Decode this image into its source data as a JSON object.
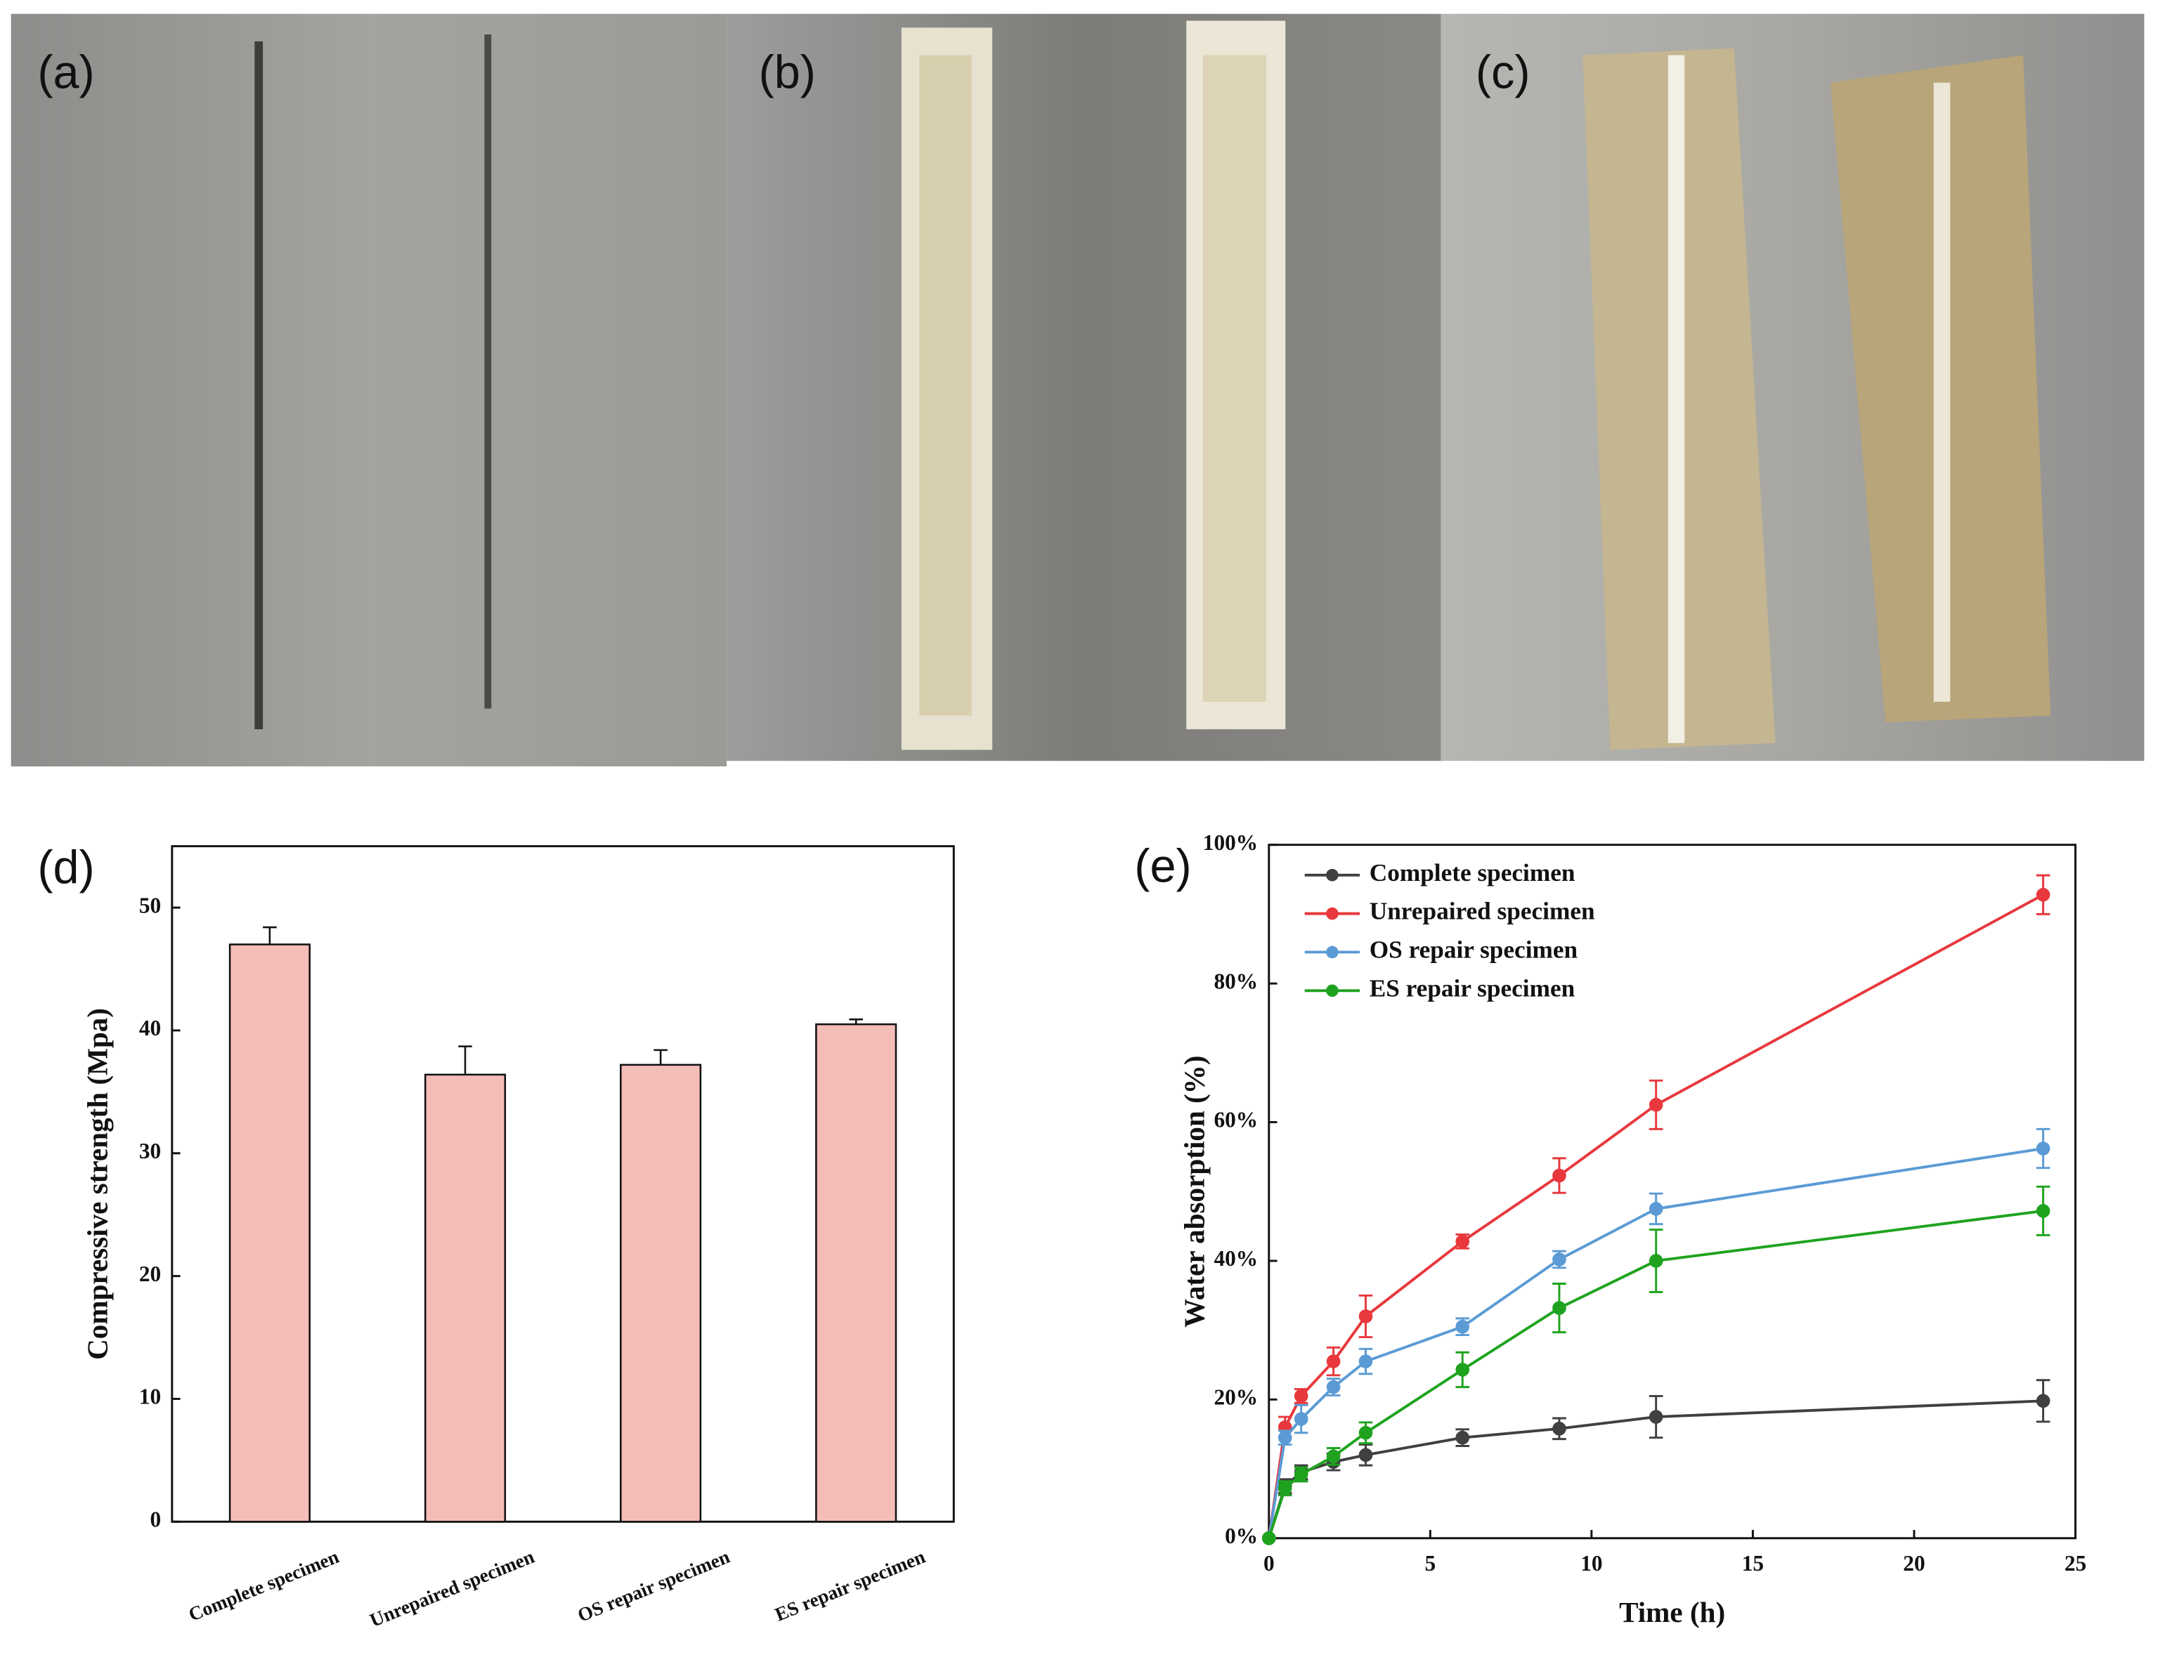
{
  "photo_labels": [
    "(a)",
    "(b)",
    "(c)"
  ],
  "chart_data": [
    {
      "type": "bar",
      "label": "(d)",
      "ylabel": "Compressive strength (Mpa)",
      "categories": [
        "Complete specimen",
        "Unrepaired specimen",
        "OS repair specimen",
        "ES repair specimen"
      ],
      "values": [
        47,
        36.4,
        37.2,
        40.5
      ],
      "errors": [
        1.4,
        2.3,
        1.2,
        0.4
      ],
      "color": "#f5bdb8",
      "ylim": [
        0,
        55
      ],
      "yticks": [
        0,
        10,
        20,
        30,
        40,
        50
      ]
    },
    {
      "type": "line",
      "label": "(e)",
      "xlabel": "Time (h)",
      "ylabel": "Water absorption (%)",
      "x": [
        0,
        0.5,
        1,
        2,
        3,
        6,
        9,
        12,
        24
      ],
      "xlim": [
        0,
        25
      ],
      "xticks": [
        0,
        5,
        10,
        15,
        20,
        25
      ],
      "ylim": [
        0,
        100
      ],
      "yticks": [
        {
          "value": 0,
          "label": "0%"
        },
        {
          "value": 20,
          "label": "20%"
        },
        {
          "value": 40,
          "label": "40%"
        },
        {
          "value": 60,
          "label": "60%"
        },
        {
          "value": 80,
          "label": "80%"
        },
        {
          "value": 100,
          "label": "100%"
        }
      ],
      "legend": "upper left",
      "series": [
        {
          "name": "Complete specimen",
          "color": "#404040",
          "values": [
            0,
            7.5,
            9.5,
            11,
            12,
            14.5,
            15.8,
            17.5,
            19.8
          ],
          "errors": [
            0,
            1,
            1,
            1.2,
            1.5,
            1.2,
            1.5,
            3,
            3
          ]
        },
        {
          "name": "Unrepaired specimen",
          "color": "#e8383d",
          "values": [
            0,
            16,
            20.5,
            25.5,
            32,
            42.8,
            52.3,
            62.5,
            92.8
          ],
          "errors": [
            0,
            1.5,
            1,
            2,
            3,
            1,
            2.5,
            3.5,
            2.8
          ]
        },
        {
          "name": "OS repair specimen",
          "color": "#5b9bd5",
          "values": [
            0,
            14.5,
            17.2,
            21.8,
            25.5,
            30.5,
            40.2,
            47.5,
            56.2
          ],
          "errors": [
            0,
            1,
            2,
            1.2,
            1.8,
            1.2,
            1.2,
            2.2,
            2.8
          ]
        },
        {
          "name": "ES repair specimen",
          "color": "#1fa31f",
          "values": [
            0,
            7.2,
            9.2,
            11.8,
            15.2,
            24.3,
            33.2,
            40,
            47.2
          ],
          "errors": [
            0,
            1,
            1,
            1.2,
            1.5,
            2.5,
            3.5,
            4.5,
            3.5
          ]
        }
      ]
    }
  ]
}
